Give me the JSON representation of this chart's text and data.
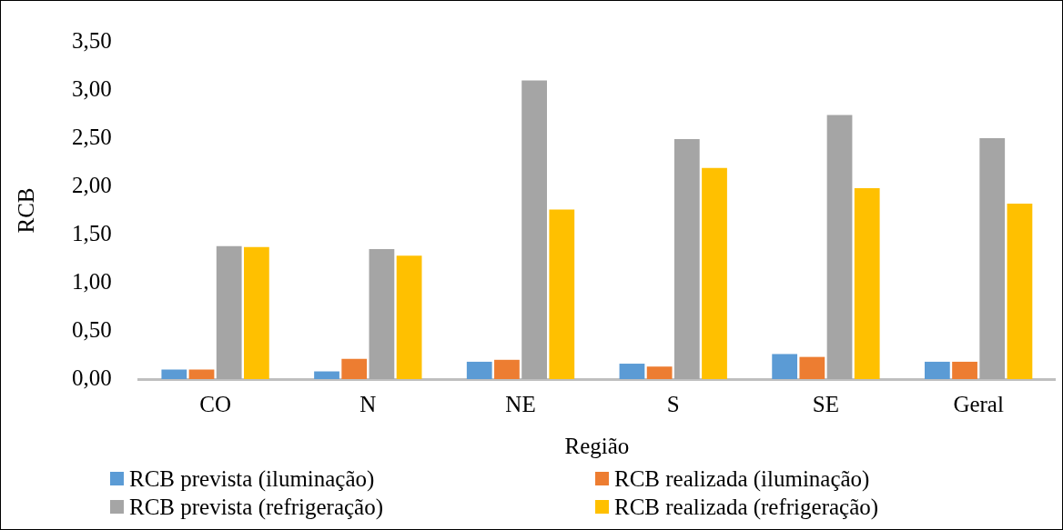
{
  "chart_data": {
    "type": "bar",
    "xlabel": "Região",
    "ylabel": "RCB",
    "categories": [
      "CO",
      "N",
      "NE",
      "S",
      "SE",
      "Geral"
    ],
    "series": [
      {
        "name": "RCB prevista (iluminação)",
        "color": "#5b9bd5",
        "values": [
          0.1,
          0.08,
          0.18,
          0.16,
          0.26,
          0.18
        ]
      },
      {
        "name": "RCB realizada (iluminação)",
        "color": "#ed7d31",
        "values": [
          0.1,
          0.21,
          0.2,
          0.13,
          0.23,
          0.18
        ]
      },
      {
        "name": "RCB prevista (refrigeração)",
        "color": "#a5a5a5",
        "values": [
          1.38,
          1.35,
          3.1,
          2.49,
          2.74,
          2.5
        ]
      },
      {
        "name": "RCB realizada (refrigeração)",
        "color": "#ffc000",
        "values": [
          1.37,
          1.28,
          1.76,
          2.19,
          1.98,
          1.82
        ]
      }
    ],
    "ylim": [
      0,
      3.5
    ],
    "yticks": [
      {
        "value": 0,
        "label": "0,00"
      },
      {
        "value": 0.5,
        "label": "0,50"
      },
      {
        "value": 1,
        "label": "1,00"
      },
      {
        "value": 1.5,
        "label": "1,50"
      },
      {
        "value": 2,
        "label": "2,00"
      },
      {
        "value": 2.5,
        "label": "2,50"
      },
      {
        "value": 3,
        "label": "3,00"
      },
      {
        "value": 3.5,
        "label": "3,50"
      }
    ],
    "grid": false,
    "legend": "bottom"
  }
}
